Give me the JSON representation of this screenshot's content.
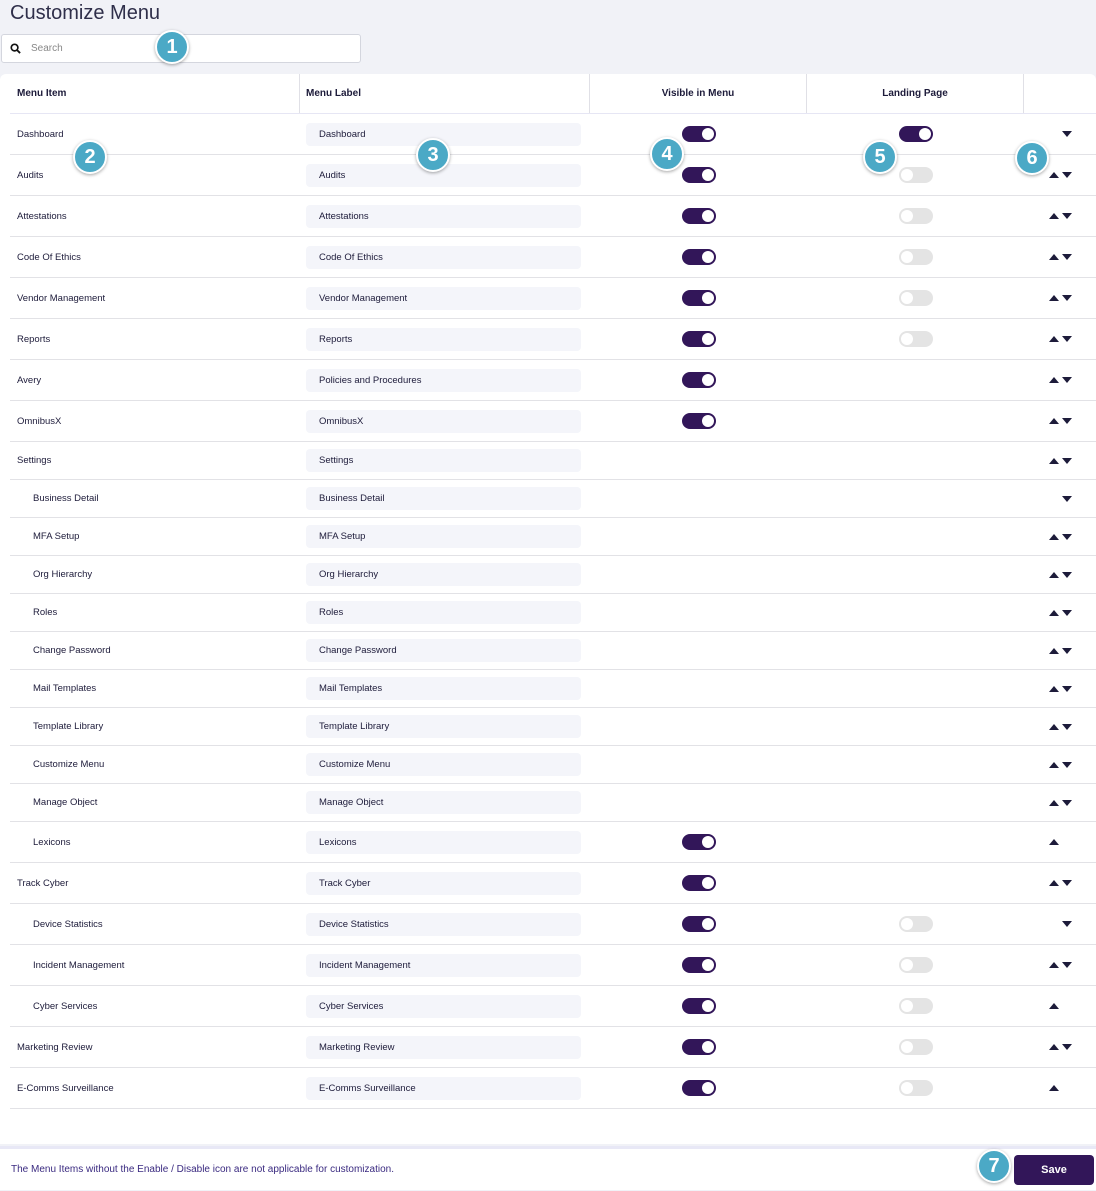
{
  "title": "Customize Menu",
  "search": {
    "placeholder": "Search",
    "value": ""
  },
  "headers": [
    "Menu Item",
    "Menu Label",
    "Visible in Menu",
    "Landing Page"
  ],
  "accent": "#321659",
  "rows": [
    {
      "item": "Dashboard",
      "label": "Dashboard",
      "visible": true,
      "landing": true,
      "up": false,
      "down": true
    },
    {
      "item": "Audits",
      "label": "Audits",
      "visible": true,
      "landing": false,
      "up": true,
      "down": true
    },
    {
      "item": "Attestations",
      "label": "Attestations",
      "visible": true,
      "landing": false,
      "up": true,
      "down": true
    },
    {
      "item": "Code Of Ethics",
      "label": "Code Of Ethics",
      "visible": true,
      "landing": false,
      "up": true,
      "down": true
    },
    {
      "item": "Vendor Management",
      "label": "Vendor Management",
      "visible": true,
      "landing": false,
      "up": true,
      "down": true
    },
    {
      "item": "Reports",
      "label": "Reports",
      "visible": true,
      "landing": false,
      "up": true,
      "down": true
    },
    {
      "item": "Avery",
      "label": "Policies and Procedures",
      "visible": true,
      "landing": null,
      "up": true,
      "down": true
    },
    {
      "item": "OmnibusX",
      "label": "OmnibusX",
      "visible": true,
      "landing": null,
      "up": true,
      "down": true
    },
    {
      "item": "Settings",
      "label": "Settings",
      "visible": null,
      "landing": null,
      "up": true,
      "down": true,
      "short": true
    },
    {
      "item": "Business Detail",
      "label": "Business Detail",
      "visible": null,
      "landing": null,
      "up": false,
      "down": true,
      "indent": true,
      "short": true
    },
    {
      "item": "MFA Setup",
      "label": "MFA Setup",
      "visible": null,
      "landing": null,
      "up": true,
      "down": true,
      "indent": true,
      "short": true
    },
    {
      "item": "Org Hierarchy",
      "label": "Org Hierarchy",
      "visible": null,
      "landing": null,
      "up": true,
      "down": true,
      "indent": true,
      "short": true
    },
    {
      "item": "Roles",
      "label": "Roles",
      "visible": null,
      "landing": null,
      "up": true,
      "down": true,
      "indent": true,
      "short": true
    },
    {
      "item": "Change Password",
      "label": "Change Password",
      "visible": null,
      "landing": null,
      "up": true,
      "down": true,
      "indent": true,
      "short": true
    },
    {
      "item": "Mail Templates",
      "label": "Mail Templates",
      "visible": null,
      "landing": null,
      "up": true,
      "down": true,
      "indent": true,
      "short": true
    },
    {
      "item": "Template Library",
      "label": "Template Library",
      "visible": null,
      "landing": null,
      "up": true,
      "down": true,
      "indent": true,
      "short": true
    },
    {
      "item": "Customize Menu",
      "label": "Customize Menu",
      "visible": null,
      "landing": null,
      "up": true,
      "down": true,
      "indent": true,
      "short": true
    },
    {
      "item": "Manage Object",
      "label": "Manage Object",
      "visible": null,
      "landing": null,
      "up": true,
      "down": true,
      "indent": true,
      "short": true
    },
    {
      "item": "Lexicons",
      "label": "Lexicons",
      "visible": true,
      "landing": null,
      "up": true,
      "down": false,
      "indent": true
    },
    {
      "item": "Track Cyber",
      "label": "Track Cyber",
      "visible": true,
      "landing": null,
      "up": true,
      "down": true
    },
    {
      "item": "Device Statistics",
      "label": "Device Statistics",
      "visible": true,
      "landing": false,
      "up": false,
      "down": true,
      "indent": true
    },
    {
      "item": "Incident Management",
      "label": "Incident Management",
      "visible": true,
      "landing": false,
      "up": true,
      "down": true,
      "indent": true
    },
    {
      "item": "Cyber Services",
      "label": "Cyber Services",
      "visible": true,
      "landing": false,
      "up": true,
      "down": false,
      "indent": true
    },
    {
      "item": "Marketing Review",
      "label": "Marketing Review",
      "visible": true,
      "landing": false,
      "up": true,
      "down": true
    },
    {
      "item": "E-Comms Surveillance",
      "label": "E-Comms Surveillance",
      "visible": true,
      "landing": false,
      "up": true,
      "down": false
    }
  ],
  "footer": {
    "note": "The Menu Items without the Enable / Disable icon are not applicable for customization.",
    "save": "Save"
  },
  "badges": [
    "1",
    "2",
    "3",
    "4",
    "5",
    "6",
    "7"
  ]
}
